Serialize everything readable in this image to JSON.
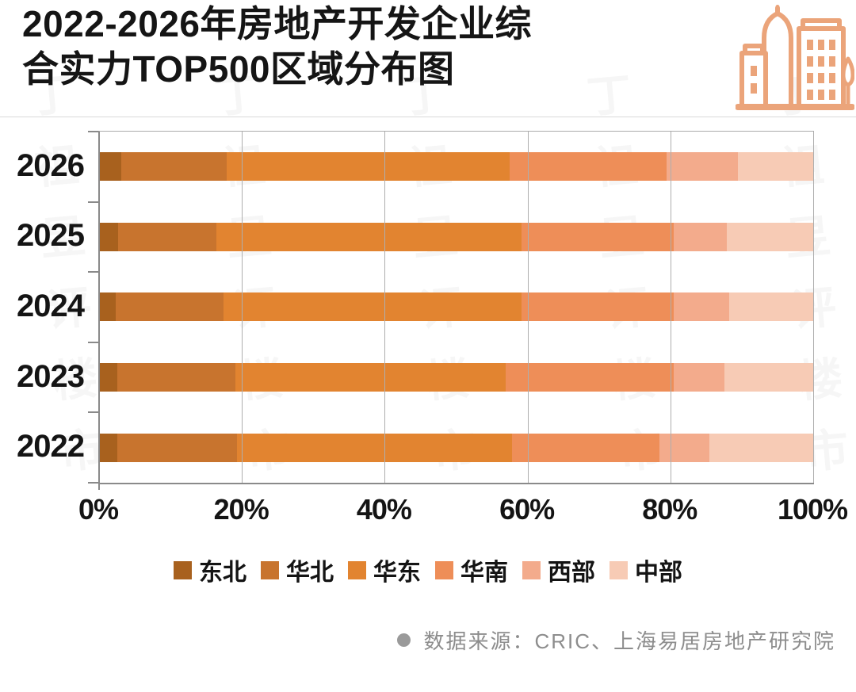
{
  "header": {
    "title_lines": [
      "2022-2026年房地产开发企业综",
      "合实力TOP500区域分布图"
    ],
    "icon": "buildings-icon",
    "icon_color": "#eba47a"
  },
  "chart_data": {
    "type": "bar",
    "orientation": "horizontal",
    "stacked": true,
    "unit": "%",
    "categories": [
      "2026",
      "2025",
      "2024",
      "2023",
      "2022"
    ],
    "series": [
      {
        "name": "东北",
        "color": "#a8611e",
        "values": [
          3.0,
          2.6,
          2.2,
          2.4,
          2.4
        ]
      },
      {
        "name": "华北",
        "color": "#c8742e",
        "values": [
          14.8,
          13.7,
          15.1,
          16.6,
          16.8
        ]
      },
      {
        "name": "华东",
        "color": "#e28430",
        "values": [
          39.6,
          42.8,
          41.8,
          37.8,
          38.5
        ]
      },
      {
        "name": "华南",
        "color": "#ee8e58",
        "values": [
          22.0,
          21.3,
          21.3,
          23.6,
          20.7
        ]
      },
      {
        "name": "西部",
        "color": "#f3ab8c",
        "values": [
          9.9,
          7.4,
          7.7,
          7.1,
          7.0
        ]
      },
      {
        "name": "中部",
        "color": "#f7cbb5",
        "values": [
          10.7,
          12.2,
          11.9,
          12.5,
          14.6
        ]
      }
    ],
    "x_ticks": [
      "0%",
      "20%",
      "40%",
      "60%",
      "80%",
      "100%"
    ],
    "xlim": [
      0,
      100
    ],
    "grid": "vertical",
    "legend_position": "bottom",
    "axis_color": "#8a8a8a",
    "gridline_color": "#aeaeae"
  },
  "footer": {
    "bullet": "●",
    "source_text": "数据来源：CRIC、上海易居房地产研究院"
  },
  "watermark": {
    "text": "丁祖昱评楼市"
  }
}
